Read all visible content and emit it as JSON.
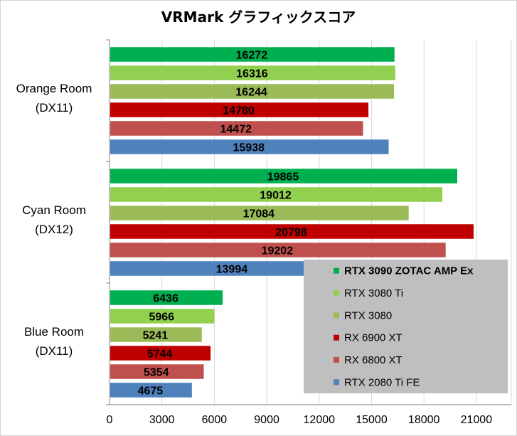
{
  "chart_data": {
    "type": "bar",
    "orientation": "horizontal",
    "title": "VRMark グラフィックスコア",
    "categories": [
      "Orange Room\n(DX11)",
      "Cyan Room\n(DX12)",
      "Blue Room\n(DX11)"
    ],
    "series": [
      {
        "name": "RTX 3090 ZOTAC AMP Ex",
        "color": "#00b050",
        "values": [
          16272,
          19865,
          6436
        ]
      },
      {
        "name": "RTX 3080 Ti",
        "color": "#92d050",
        "values": [
          16316,
          19012,
          5966
        ]
      },
      {
        "name": "RTX 3080",
        "color": "#9bbb59",
        "values": [
          16244,
          17084,
          5241
        ]
      },
      {
        "name": "RX 6900 XT",
        "color": "#c00000",
        "values": [
          14780,
          20798,
          5744
        ]
      },
      {
        "name": "RX 6800 XT",
        "color": "#c0504d",
        "values": [
          14472,
          19202,
          5354
        ]
      },
      {
        "name": "RTX 2080 Ti FE",
        "color": "#4f81bd",
        "values": [
          15938,
          13994,
          4675
        ]
      }
    ],
    "xlim": [
      0,
      23000
    ],
    "xticks": [
      0,
      3000,
      6000,
      9000,
      12000,
      15000,
      18000,
      21000
    ],
    "grid": true,
    "legend_position": "bottom-right"
  }
}
